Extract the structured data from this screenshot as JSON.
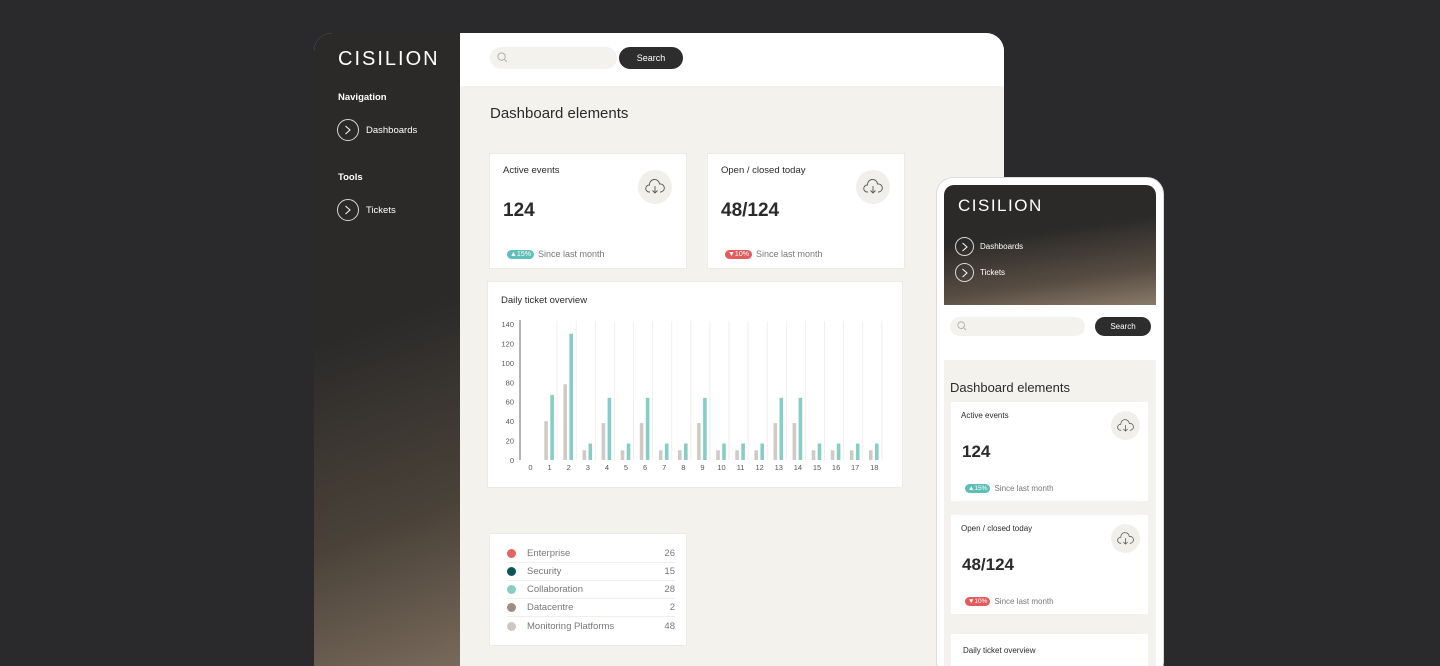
{
  "desktop": {
    "logo": "CISILION",
    "sidebar": {
      "sections": [
        {
          "heading": "Navigation",
          "item": "Dashboards"
        },
        {
          "heading": "Tools",
          "item": "Tickets"
        }
      ]
    },
    "search": {
      "placeholder": "",
      "button": "Search"
    },
    "page_title": "Dashboard elements",
    "cards": [
      {
        "title": "Active events",
        "value": "124",
        "badge": "▲15%",
        "badge_dir": "up",
        "caption": "Since last month"
      },
      {
        "title": "Open / closed today",
        "value": "48/124",
        "badge": "▼10%",
        "badge_dir": "down",
        "caption": "Since last month"
      }
    ],
    "chart_title": "Daily ticket overview",
    "legend": [
      {
        "name": "Enterprise",
        "value": "26",
        "color": "#e86060"
      },
      {
        "name": "Security",
        "value": "15",
        "color": "#0e5656"
      },
      {
        "name": "Collaboration",
        "value": "28",
        "color": "#86cdc8"
      },
      {
        "name": "Datacentre",
        "value": "2",
        "color": "#9e8d80"
      },
      {
        "name": "Monitoring Platforms",
        "value": "48",
        "color": "#cfc6bf"
      }
    ]
  },
  "mobile": {
    "logo": "CISILION",
    "nav": [
      "Dashboards",
      "Tickets"
    ],
    "search": {
      "placeholder": "",
      "button": "Search"
    },
    "page_title": "Dashboard elements",
    "cards": [
      {
        "title": "Active events",
        "value": "124",
        "badge": "▲15%",
        "badge_dir": "up",
        "caption": "Since last month"
      },
      {
        "title": "Open / closed today",
        "value": "48/124",
        "badge": "▼10%",
        "badge_dir": "down",
        "caption": "Since last month"
      }
    ],
    "chart_title": "Daily ticket overview"
  },
  "chart_data": {
    "type": "bar",
    "title": "Daily ticket overview",
    "categories": [
      "0",
      "1",
      "2",
      "3",
      "4",
      "5",
      "6",
      "7",
      "8",
      "9",
      "10",
      "11",
      "12",
      "13",
      "14",
      "15",
      "16",
      "17",
      "18"
    ],
    "series": [
      {
        "values": [
          0,
          40,
          78,
          10,
          38,
          10,
          38,
          10,
          10,
          38,
          10,
          10,
          10,
          38,
          38,
          10,
          10,
          10,
          10
        ],
        "color": "#cfcac4"
      },
      {
        "values": [
          0,
          67,
          130,
          17,
          64,
          17,
          64,
          17,
          17,
          64,
          17,
          17,
          17,
          64,
          64,
          17,
          17,
          17,
          17
        ],
        "color": "#86cdc8"
      }
    ],
    "yticks": [
      0,
      20,
      40,
      60,
      80,
      100,
      120,
      140
    ],
    "ylim": [
      0,
      140
    ],
    "grid": "vertical"
  },
  "colors": {
    "accent_teal": "#86cdc8",
    "dark": "#2d2d2d",
    "background": "#f4f2ed"
  }
}
